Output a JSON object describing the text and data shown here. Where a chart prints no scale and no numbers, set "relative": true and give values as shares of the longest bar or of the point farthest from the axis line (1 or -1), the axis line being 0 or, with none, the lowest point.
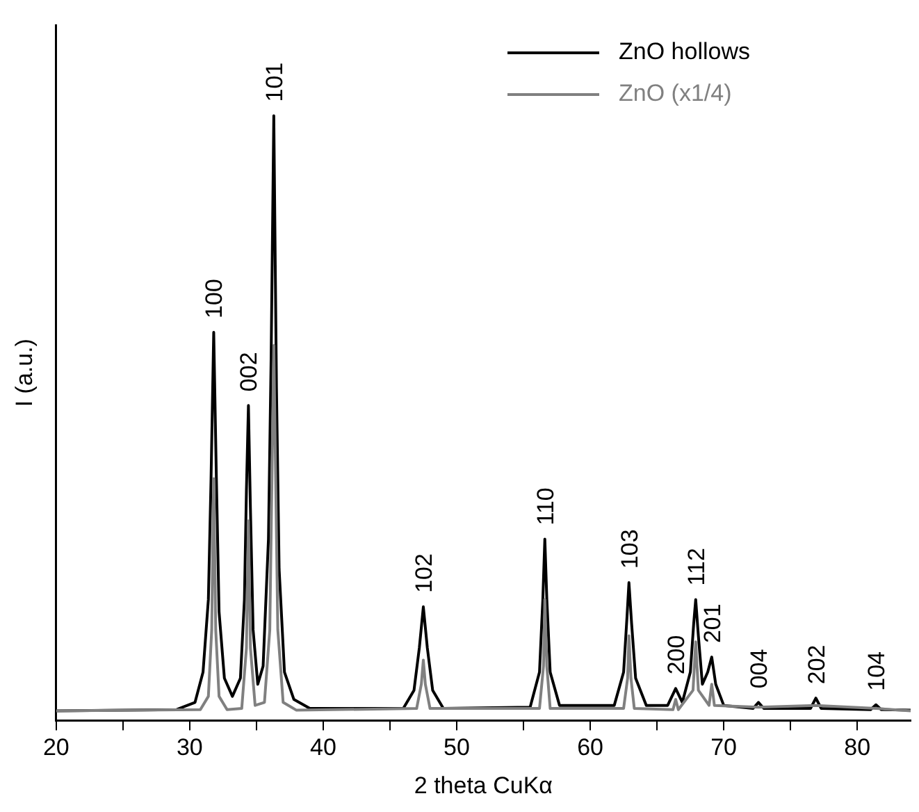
{
  "chart_data": {
    "type": "line",
    "xlabel": "2 theta CuKα",
    "ylabel": "I (a.u.)",
    "relative": true,
    "grid": false,
    "legend": "top right",
    "marker": "none",
    "line_style": "solid",
    "xlim": [
      20,
      84
    ],
    "xticks": [
      20,
      {
        "value": 25,
        "label": null
      },
      30,
      {
        "value": 35,
        "label": null
      },
      40,
      {
        "value": 45,
        "label": null
      },
      50,
      {
        "value": 55,
        "label": null
      },
      60,
      {
        "value": 65,
        "label": null
      },
      70,
      {
        "value": 75,
        "label": null
      },
      80
    ],
    "series": [
      {
        "name": "ZnO (x1/4)",
        "color": "#808080",
        "x": [
          20,
          30.8,
          31.4,
          31.65,
          31.8,
          31.95,
          32.2,
          32.8,
          33.9,
          34.25,
          34.4,
          34.55,
          34.9,
          35.6,
          36.0,
          36.3,
          36.6,
          37.0,
          38,
          47.0,
          47.35,
          47.5,
          47.65,
          48.0,
          56.2,
          56.5,
          56.6,
          56.75,
          57.0,
          62.5,
          62.8,
          62.9,
          63.05,
          63.3,
          66.2,
          66.4,
          66.6,
          67.7,
          67.9,
          68.1,
          68.9,
          69.1,
          69.3,
          72.6,
          76.9,
          81.4,
          84
        ],
        "values": [
          0.016,
          0.018,
          0.04,
          0.15,
          0.4,
          0.15,
          0.04,
          0.018,
          0.02,
          0.12,
          0.33,
          0.12,
          0.025,
          0.03,
          0.15,
          0.62,
          0.15,
          0.03,
          0.017,
          0.02,
          0.06,
          0.1,
          0.06,
          0.02,
          0.02,
          0.09,
          0.2,
          0.09,
          0.02,
          0.02,
          0.07,
          0.14,
          0.07,
          0.02,
          0.018,
          0.035,
          0.018,
          0.05,
          0.13,
          0.05,
          0.025,
          0.06,
          0.025,
          0.022,
          0.025,
          0.02,
          0.016
        ]
      },
      {
        "name": "ZnO hollows",
        "color": "#000000",
        "x": [
          20,
          29,
          30.4,
          31.0,
          31.4,
          31.6,
          31.8,
          32.0,
          32.2,
          32.6,
          33.2,
          33.8,
          34.1,
          34.25,
          34.4,
          34.55,
          34.75,
          35.1,
          35.5,
          35.9,
          36.1,
          36.3,
          36.5,
          36.7,
          37.1,
          37.8,
          39,
          46,
          46.8,
          47.2,
          47.5,
          47.8,
          48.2,
          49,
          55.5,
          56.2,
          56.45,
          56.6,
          56.75,
          57.0,
          57.7,
          61.8,
          62.5,
          62.75,
          62.9,
          63.1,
          63.4,
          64.2,
          65.8,
          66.4,
          66.9,
          67.5,
          67.75,
          67.9,
          68.1,
          68.4,
          68.8,
          69.1,
          69.4,
          70.0,
          72.2,
          72.6,
          73.0,
          76.5,
          76.9,
          77.3,
          81.0,
          81.4,
          81.8,
          84
        ],
        "values": [
          0.016,
          0.018,
          0.03,
          0.08,
          0.2,
          0.4,
          0.642,
          0.4,
          0.18,
          0.07,
          0.04,
          0.07,
          0.2,
          0.38,
          0.521,
          0.35,
          0.15,
          0.06,
          0.09,
          0.3,
          0.6,
          1.0,
          0.55,
          0.25,
          0.08,
          0.035,
          0.02,
          0.02,
          0.05,
          0.12,
          0.188,
          0.12,
          0.05,
          0.02,
          0.022,
          0.08,
          0.2,
          0.3,
          0.2,
          0.08,
          0.025,
          0.025,
          0.08,
          0.17,
          0.228,
          0.16,
          0.07,
          0.025,
          0.025,
          0.053,
          0.03,
          0.08,
          0.16,
          0.2,
          0.14,
          0.06,
          0.08,
          0.105,
          0.06,
          0.025,
          0.02,
          0.03,
          0.02,
          0.02,
          0.037,
          0.02,
          0.018,
          0.026,
          0.018,
          0.017
        ]
      }
    ],
    "annotations": [
      {
        "text": "100",
        "x": 31.8,
        "y": 0.642
      },
      {
        "text": "002",
        "x": 34.4,
        "y": 0.521
      },
      {
        "text": "101",
        "x": 36.3,
        "y": 1.0
      },
      {
        "text": "102",
        "x": 47.5,
        "y": 0.188
      },
      {
        "text": "110",
        "x": 56.6,
        "y": 0.3
      },
      {
        "text": "103",
        "x": 62.9,
        "y": 0.228
      },
      {
        "text": "200",
        "x": 66.4,
        "y": 0.053
      },
      {
        "text": "112",
        "x": 67.9,
        "y": 0.2
      },
      {
        "text": "201",
        "x": 69.1,
        "y": 0.105
      },
      {
        "text": "004",
        "x": 72.6,
        "y": 0.03
      },
      {
        "text": "202",
        "x": 76.9,
        "y": 0.037
      },
      {
        "text": "104",
        "x": 81.4,
        "y": 0.026
      }
    ]
  }
}
